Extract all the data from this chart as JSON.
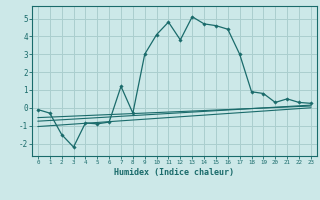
{
  "xlabel": "Humidex (Indice chaleur)",
  "bg_color": "#cce8e8",
  "grid_color": "#aacece",
  "line_color": "#1a6b6b",
  "xlim": [
    -0.5,
    23.5
  ],
  "ylim": [
    -2.7,
    5.7
  ],
  "xticks": [
    0,
    1,
    2,
    3,
    4,
    5,
    6,
    7,
    8,
    9,
    10,
    11,
    12,
    13,
    14,
    15,
    16,
    17,
    18,
    19,
    20,
    21,
    22,
    23
  ],
  "yticks": [
    -2,
    -1,
    0,
    1,
    2,
    3,
    4,
    5
  ],
  "main_x": [
    0,
    1,
    2,
    3,
    4,
    5,
    6,
    7,
    8,
    9,
    10,
    11,
    12,
    13,
    14,
    15,
    16,
    17,
    18,
    19,
    20,
    21,
    22,
    23
  ],
  "main_y": [
    -0.1,
    -0.3,
    -1.5,
    -2.2,
    -0.85,
    -0.9,
    -0.8,
    1.2,
    -0.3,
    3.0,
    4.1,
    4.8,
    3.8,
    5.1,
    4.7,
    4.6,
    4.4,
    3.0,
    0.9,
    0.8,
    0.3,
    0.5,
    0.3,
    0.25
  ],
  "line1_x": [
    0,
    23
  ],
  "line1_y": [
    -0.75,
    0.15
  ],
  "line2_x": [
    0,
    23
  ],
  "line2_y": [
    -0.55,
    0.1
  ],
  "line3_x": [
    0,
    23
  ],
  "line3_y": [
    -1.05,
    0.0
  ]
}
